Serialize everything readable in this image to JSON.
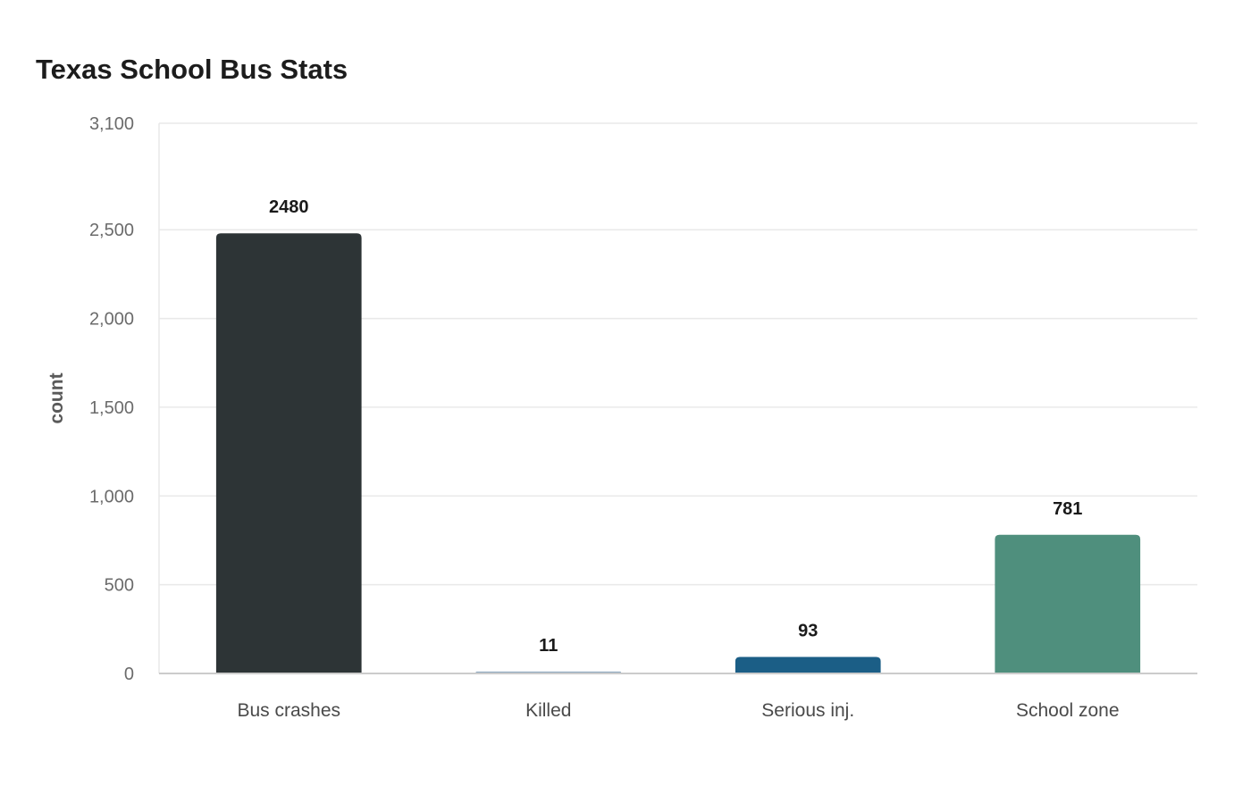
{
  "chart_data": {
    "type": "bar",
    "title": "Texas School Bus Stats",
    "xlabel": "",
    "ylabel": "count",
    "ylim": [
      0,
      3100
    ],
    "yticks": [
      0,
      500,
      1000,
      1500,
      2000,
      2500,
      3100
    ],
    "ytick_labels": [
      "0",
      "500",
      "1,000",
      "1,500",
      "2,000",
      "2,500",
      "3,100"
    ],
    "grid": true,
    "categories": [
      "Bus crashes",
      "Killed",
      "Serious inj.",
      "School zone"
    ],
    "values": [
      2480,
      11,
      93,
      781
    ],
    "value_labels": [
      "2480",
      "11",
      "93",
      "781"
    ],
    "colors": [
      "#2d3436",
      "#8fa9bf",
      "#1b5e86",
      "#4f8f7d"
    ],
    "grid_color": "#e9e9e9",
    "axis_color": "#cccccc"
  }
}
